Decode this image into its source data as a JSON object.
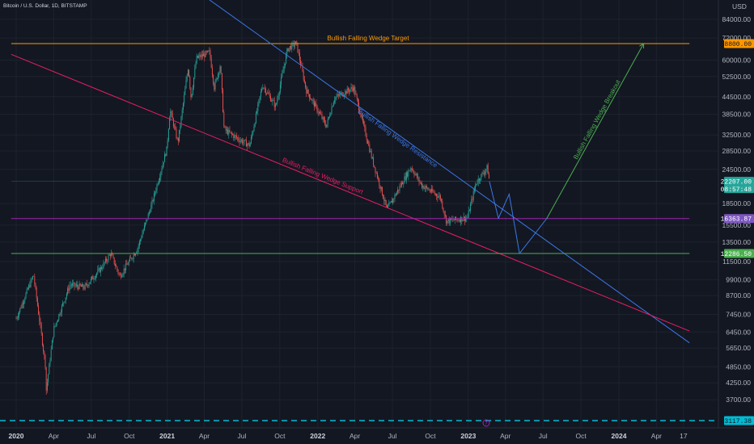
{
  "chart_data": {
    "type": "candlestick",
    "title": "Bitcoin / U.S. Dollar, 1D, BITSTAMP",
    "currency": "USD",
    "y_scale": "log",
    "y_ticks": [
      "84000.00",
      "72000.00",
      "60000.00",
      "52500.00",
      "44500.00",
      "38500.00",
      "32500.00",
      "28500.00",
      "24500.00",
      "18500.00",
      "15500.00",
      "13500.00",
      "11500.00",
      "9900.00",
      "8700.00",
      "7450.00",
      "6450.00",
      "5650.00",
      "4850.00",
      "4250.00",
      "3700.00"
    ],
    "x_ticks": [
      {
        "label": "2020",
        "year": true
      },
      {
        "label": "Apr"
      },
      {
        "label": "Jul"
      },
      {
        "label": "Oct"
      },
      {
        "label": "2021",
        "year": true
      },
      {
        "label": "Apr"
      },
      {
        "label": "Jul"
      },
      {
        "label": "Oct"
      },
      {
        "label": "2022",
        "year": true
      },
      {
        "label": "Apr"
      },
      {
        "label": "Jul"
      },
      {
        "label": "Oct"
      },
      {
        "label": "2023",
        "year": true
      },
      {
        "label": "Apr"
      },
      {
        "label": "Jul"
      },
      {
        "label": "Oct"
      },
      {
        "label": "2024",
        "year": true
      },
      {
        "label": "Apr"
      },
      {
        "label": "17"
      }
    ],
    "price_path": [
      [
        "2020-01-01",
        7200
      ],
      [
        "2020-02-12",
        10300
      ],
      [
        "2020-03-12",
        4900
      ],
      [
        "2020-03-13",
        3900
      ],
      [
        "2020-04-01",
        6600
      ],
      [
        "2020-05-10",
        9500
      ],
      [
        "2020-06-15",
        9300
      ],
      [
        "2020-07-27",
        11000
      ],
      [
        "2020-08-17",
        12300
      ],
      [
        "2020-09-08",
        10200
      ],
      [
        "2020-10-21",
        12800
      ],
      [
        "2020-11-25",
        18500
      ],
      [
        "2020-12-31",
        29000
      ],
      [
        "2021-01-08",
        40000
      ],
      [
        "2021-01-27",
        30500
      ],
      [
        "2021-02-21",
        57000
      ],
      [
        "2021-02-28",
        44000
      ],
      [
        "2021-03-13",
        61000
      ],
      [
        "2021-04-14",
        64000
      ],
      [
        "2021-04-25",
        48000
      ],
      [
        "2021-05-10",
        58000
      ],
      [
        "2021-05-19",
        34000
      ],
      [
        "2021-06-22",
        31500
      ],
      [
        "2021-07-20",
        29800
      ],
      [
        "2021-08-20",
        49000
      ],
      [
        "2021-09-21",
        41000
      ],
      [
        "2021-10-20",
        66000
      ],
      [
        "2021-11-10",
        69000
      ],
      [
        "2021-12-04",
        47000
      ],
      [
        "2022-01-22",
        35000
      ],
      [
        "2022-02-10",
        44000
      ],
      [
        "2022-03-29",
        48000
      ],
      [
        "2022-05-12",
        27000
      ],
      [
        "2022-06-18",
        17600
      ],
      [
        "2022-08-15",
        25000
      ],
      [
        "2022-09-10",
        21500
      ],
      [
        "2022-10-25",
        19500
      ],
      [
        "2022-11-09",
        16000
      ],
      [
        "2022-12-30",
        16500
      ],
      [
        "2023-01-20",
        22000
      ],
      [
        "2023-02-16",
        24900
      ],
      [
        "2023-02-21",
        22207
      ]
    ],
    "lines": [
      {
        "name": "Bullish Falling Wedge Target",
        "color": "#ff9800",
        "points": [
          [
            "2019-12-20",
            68800
          ],
          [
            "2024-06-20",
            68800
          ]
        ]
      },
      {
        "name": "Bullish Falling Wedge Resistance",
        "color": "#3b78e7",
        "points": [
          [
            "2020-12-20",
            130000
          ],
          [
            "2024-06-20",
            5900
          ]
        ]
      },
      {
        "name": "Bullish Falling Wedge Support",
        "color": "#e91e63",
        "points": [
          [
            "2019-12-20",
            63000
          ],
          [
            "2024-06-20",
            6500
          ]
        ]
      },
      {
        "name": "",
        "color": "#9c27b0",
        "points": [
          [
            "2019-12-20",
            16363.87
          ],
          [
            "2024-06-20",
            16363.87
          ]
        ]
      },
      {
        "name": "",
        "color": "#4caf50",
        "points": [
          [
            "2019-12-20",
            12286.5
          ],
          [
            "2024-06-20",
            12286.5
          ]
        ]
      },
      {
        "name": "",
        "color": "#26a69a",
        "points": [
          [
            "2019-12-20",
            22207
          ],
          [
            "2024-06-20",
            22207
          ]
        ]
      }
    ],
    "projection": {
      "color": "#3b78e7",
      "points": [
        [
          "2023-02-21",
          22207
        ],
        [
          "2023-03-15",
          16400
        ],
        [
          "2023-04-10",
          20000
        ],
        [
          "2023-05-05",
          12286.5
        ],
        [
          "2023-07-10",
          16363.87
        ]
      ]
    },
    "breakout_arrow": {
      "name": "Bullish Falling Wedge Breakout",
      "color": "#4caf50",
      "points": [
        [
          "2023-07-10",
          16363.87
        ],
        [
          "2024-03-01",
          68800
        ]
      ]
    },
    "bottom_line": {
      "color": "#00bcd4",
      "value": 3117.38
    },
    "price_tags": [
      {
        "value": "68800.00",
        "price": 68800,
        "bg": "#ff9800",
        "fg": "#131722"
      },
      {
        "value": "22207.00",
        "price": 22207,
        "bg": "#26a69a",
        "fg": "#ffffff",
        "sub": "08:57:48"
      },
      {
        "value": "16363.87",
        "price": 16363.87,
        "bg": "#7e57c2",
        "fg": "#ffffff"
      },
      {
        "value": "12286.50",
        "price": 12286.5,
        "bg": "#4caf50",
        "fg": "#ffffff"
      },
      {
        "value": "3117.38",
        "price": 3117.38,
        "bg": "#00bcd4",
        "fg": "#131722"
      }
    ],
    "colors": {
      "bg": "#131722",
      "grid": "#1e222d",
      "up": "#26a69a",
      "down": "#ef5350"
    }
  }
}
